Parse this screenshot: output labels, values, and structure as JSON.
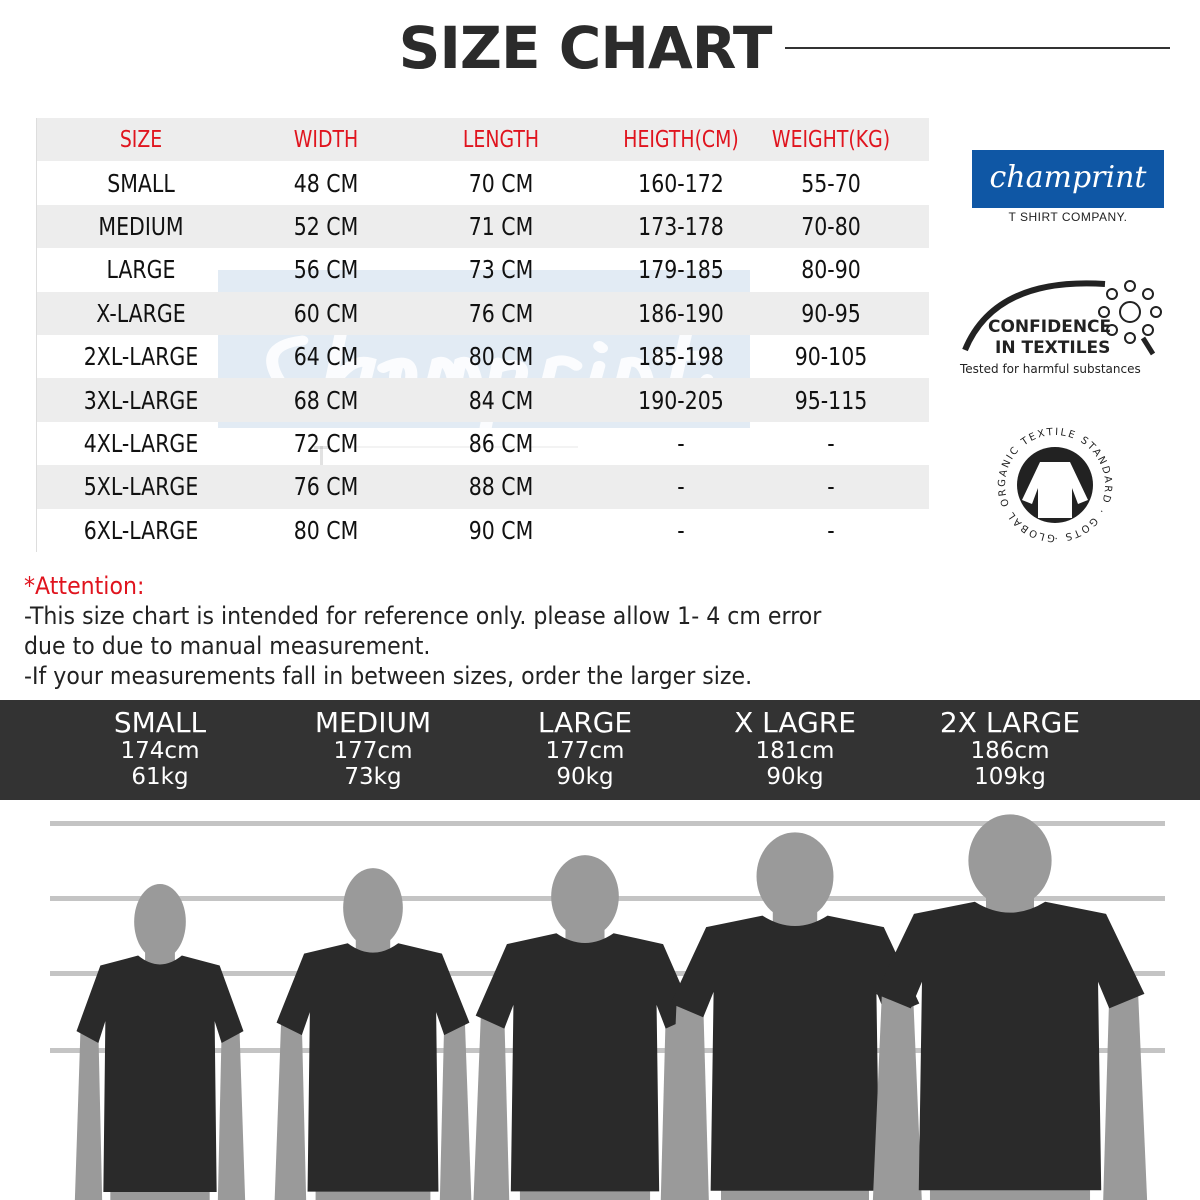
{
  "title": "SIZE CHART",
  "table": {
    "headers": [
      "SIZE",
      "WIDTH",
      "LENGTH",
      "HEIGTH(CM)",
      "WEIGHT(KG)"
    ],
    "rows": [
      [
        "SMALL",
        "48 CM",
        "70 CM",
        "160-172",
        "55-70"
      ],
      [
        "MEDIUM",
        "52 CM",
        "71 CM",
        "173-178",
        "70-80"
      ],
      [
        "LARGE",
        "56 CM",
        "73 CM",
        "179-185",
        "80-90"
      ],
      [
        "X-LARGE",
        "60 CM",
        "76 CM",
        "186-190",
        "90-95"
      ],
      [
        "2XL-LARGE",
        "64 CM",
        "80 CM",
        "185-198",
        "90-105"
      ],
      [
        "3XL-LARGE",
        "68 CM",
        "84 CM",
        "190-205",
        "95-115"
      ],
      [
        "4XL-LARGE",
        "72 CM",
        "86 CM",
        "-",
        "-"
      ],
      [
        "5XL-LARGE",
        "76 CM",
        "88 CM",
        "-",
        "-"
      ],
      [
        "6XL-LARGE",
        "80 CM",
        "90 CM",
        "-",
        "-"
      ]
    ]
  },
  "watermark": {
    "brand": "champrint",
    "tagline": "T SHIRT COMPANY."
  },
  "logos": {
    "brand": "champrint",
    "brand_tagline": "T SHIRT COMPANY.",
    "oeko_title1": "CONFIDENCE",
    "oeko_title2": "IN TEXTILES",
    "oeko_sub": "Tested for harmful substances",
    "gots": "GLOBAL ORGANIC TEXTILE STANDARD · GOTS ·"
  },
  "notes": {
    "attention": "*Attention:",
    "line1": "-This size chart is intended for reference only. please allow 1- 4 cm error",
    "line2": "due to due to manual measurement.",
    "line3": "-If your measurements fall in between sizes, order the larger size."
  },
  "models": [
    {
      "label": "SMALL",
      "height": "174cm",
      "weight": "61kg"
    },
    {
      "label": "MEDIUM",
      "height": "177cm",
      "weight": "73kg"
    },
    {
      "label": "LARGE",
      "height": "177cm",
      "weight": "90kg"
    },
    {
      "label": "X LAGRE",
      "height": "181cm",
      "weight": "90kg"
    },
    {
      "label": "2X LARGE",
      "height": "186cm",
      "weight": "109kg"
    }
  ],
  "colors": {
    "header_text": "#e0141e",
    "band": "#333333",
    "brand_blue": "#0f57a5",
    "silhouette": "#9a9a9a",
    "shirt": "#2a2a2a"
  }
}
